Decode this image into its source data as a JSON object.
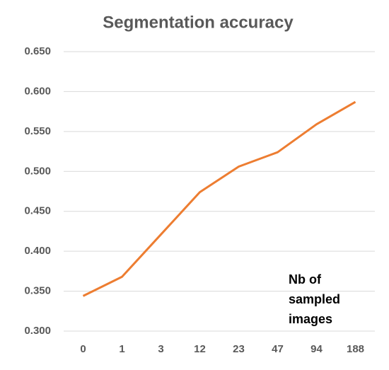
{
  "chart_data": {
    "type": "line",
    "title": "Segmentation accuracy",
    "annotation": [
      "Nb    of",
      "sampled",
      "images"
    ],
    "categories": [
      "0",
      "1",
      "3",
      "12",
      "23",
      "47",
      "94",
      "188"
    ],
    "series": [
      {
        "color": "#ed7d31",
        "values": [
          0.344,
          0.368,
          0.421,
          0.474,
          0.506,
          0.524,
          0.559,
          0.587
        ]
      }
    ],
    "ylim": [
      0.3,
      0.65
    ],
    "yticks": [
      {
        "value": 0.3,
        "label": "0.300"
      },
      {
        "value": 0.35,
        "label": "0.350"
      },
      {
        "value": 0.4,
        "label": "0.400"
      },
      {
        "value": 0.45,
        "label": "0.450"
      },
      {
        "value": 0.5,
        "label": "0.500"
      },
      {
        "value": 0.55,
        "label": "0.550"
      },
      {
        "value": 0.6,
        "label": "0.600"
      },
      {
        "value": 0.65,
        "label": "0.650"
      }
    ],
    "grid": true
  }
}
